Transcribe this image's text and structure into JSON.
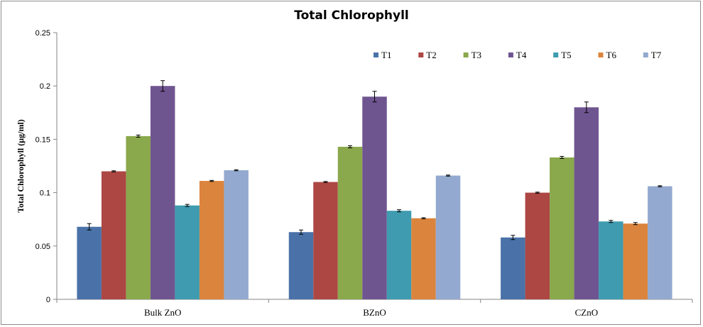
{
  "chart_data": {
    "type": "bar",
    "title": "Total Chlorophyll",
    "xlabel": "",
    "ylabel": "Total Chlorophyll (µg/ml)",
    "ylim": [
      0,
      0.25
    ],
    "yticks": [
      0,
      0.05,
      0.1,
      0.15,
      0.2,
      0.25
    ],
    "ytick_labels": [
      "0",
      "0.05",
      "0.1",
      "0.15",
      "0.2",
      "0.25"
    ],
    "categories": [
      "Bulk ZnO",
      "BZnO",
      "CZnO"
    ],
    "legend_position": "top-right",
    "grid": false,
    "series": [
      {
        "name": "T1",
        "color": "#4a72a8",
        "values": [
          0.068,
          0.063,
          0.058
        ],
        "errors": [
          0.003,
          0.002,
          0.002
        ]
      },
      {
        "name": "T2",
        "color": "#ac4744",
        "values": [
          0.12,
          0.11,
          0.1
        ],
        "errors": [
          0.0005,
          0.0005,
          0.0005
        ]
      },
      {
        "name": "T3",
        "color": "#8aa84c",
        "values": [
          0.153,
          0.143,
          0.133
        ],
        "errors": [
          0.001,
          0.001,
          0.001
        ]
      },
      {
        "name": "T4",
        "color": "#6f5590",
        "values": [
          0.2,
          0.19,
          0.18
        ],
        "errors": [
          0.005,
          0.005,
          0.005
        ]
      },
      {
        "name": "T5",
        "color": "#3e9bb0",
        "values": [
          0.088,
          0.083,
          0.073
        ],
        "errors": [
          0.001,
          0.001,
          0.001
        ]
      },
      {
        "name": "T6",
        "color": "#db843d",
        "values": [
          0.111,
          0.076,
          0.071
        ],
        "errors": [
          0.0005,
          0.0005,
          0.001
        ]
      },
      {
        "name": "T7",
        "color": "#93a9cf",
        "values": [
          0.121,
          0.116,
          0.106
        ],
        "errors": [
          0.0005,
          0.0005,
          0.0005
        ]
      }
    ]
  }
}
